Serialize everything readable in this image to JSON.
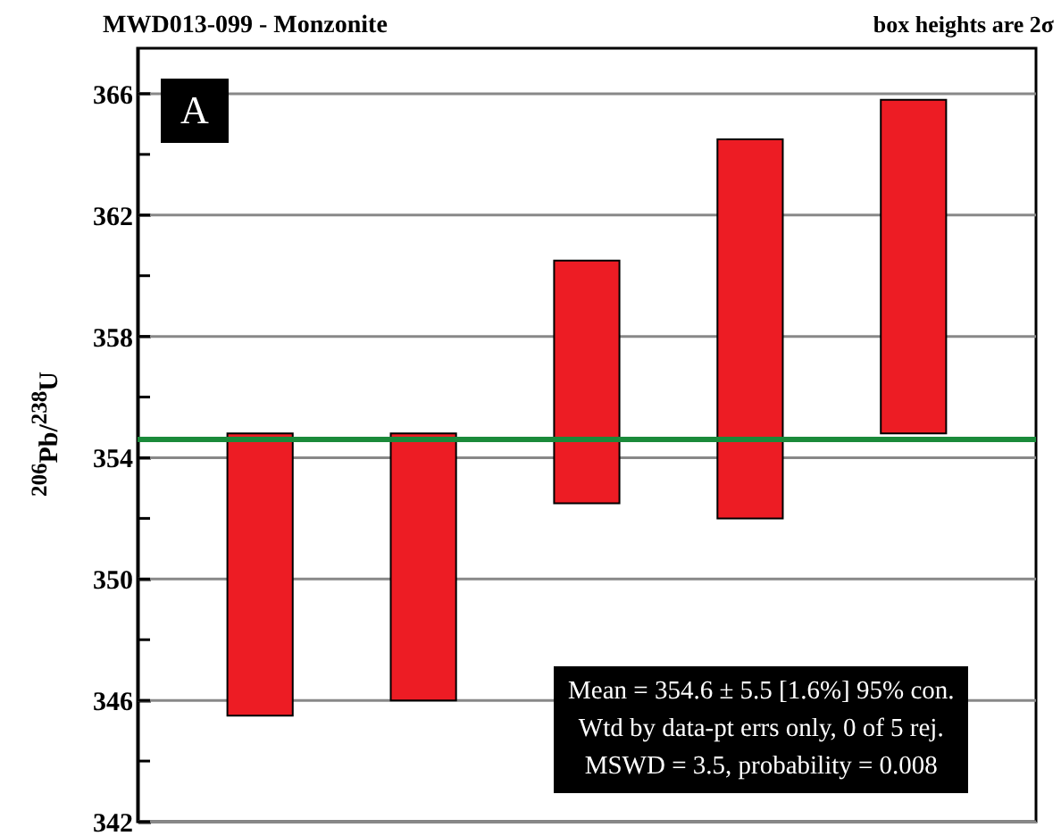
{
  "chart_data": {
    "type": "bar",
    "title": "MWD013-099 - Monzonite",
    "ylabel": "$^{206}$Pb/$^{238}$U",
    "categories": [
      null,
      null,
      null,
      null,
      null
    ],
    "base": [
      345.5,
      346.0,
      352.5,
      352.0,
      354.8
    ],
    "values": [
      9.3,
      8.8,
      8.0,
      12.5,
      11.0
    ],
    "color": "#ed1c24",
    "ylim": [
      342,
      367.5
    ],
    "yticks": [
      342,
      {
        "value": 344,
        "label": null
      },
      346,
      {
        "value": 348,
        "label": null
      },
      350,
      {
        "value": 352,
        "label": null
      },
      354,
      {
        "value": 356,
        "label": null
      },
      358,
      {
        "value": 360,
        "label": null
      },
      362,
      {
        "value": 364,
        "label": null
      },
      366
    ],
    "grid": "y",
    "ref_lines": [
      {
        "axis": "y",
        "value": 354.6,
        "color": "#1a8a3a"
      }
    ],
    "annotations": [
      "A",
      "box heights are 2σ",
      "Mean = 354.6 ± 5.5 [1.6%] 95% con.",
      "Wtd by data-pt errs only, 0 of 5 rej.",
      "MSWD = 3.5, probability = 0.008"
    ]
  }
}
